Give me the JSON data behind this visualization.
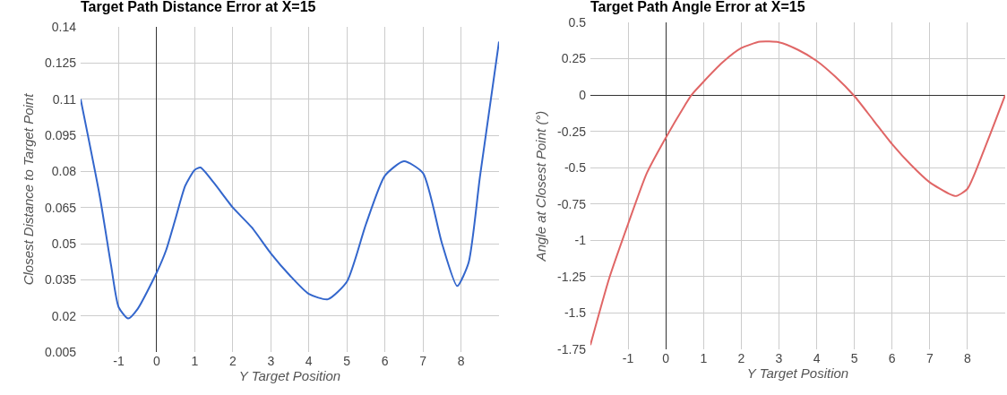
{
  "chart_data": [
    {
      "type": "line",
      "title": "Target Path Distance Error at X=15",
      "xlabel": "Y Target Position",
      "ylabel": "Closest Distance to Target Point",
      "grid": true,
      "x": [
        -2,
        -1.5,
        -1.2,
        -1,
        -0.75,
        -0.5,
        0,
        0.25,
        0.5,
        0.75,
        1,
        1.15,
        1.5,
        2,
        2.5,
        3,
        3.5,
        4,
        4.5,
        5,
        5.5,
        6,
        6.5,
        7,
        7.5,
        7.9,
        8.2,
        8.5,
        9
      ],
      "series": [
        {
          "color": "#3366cc",
          "values": [
            0.11,
            0.07,
            0.041,
            0.0236,
            0.0189,
            0.0229,
            0.038,
            0.0474,
            0.0607,
            0.074,
            0.0806,
            0.0816,
            0.0753,
            0.065,
            0.0567,
            0.046,
            0.0368,
            0.0291,
            0.0269,
            0.0342,
            0.058,
            0.0782,
            0.0842,
            0.0793,
            0.0501,
            0.0324,
            0.0421,
            0.0779,
            0.1339
          ]
        }
      ],
      "xlim": [
        -2,
        9
      ],
      "xticks": [
        -1,
        0,
        1,
        2,
        3,
        4,
        5,
        6,
        7,
        8
      ],
      "ylim": [
        0.005,
        0.14
      ],
      "yticks": [
        0.005,
        0.02,
        0.035,
        0.05,
        0.065,
        0.08,
        0.095,
        0.11,
        0.125,
        0.14
      ]
    },
    {
      "type": "line",
      "title": "Target Path Angle Error at X=15",
      "xlabel": "Y Target Position",
      "ylabel": "Angle at Closest Point (°)",
      "grid": true,
      "x": [
        -2,
        -1.5,
        -1,
        -0.5,
        0,
        0.5,
        0.68,
        1,
        1.5,
        2,
        2.5,
        3,
        3.5,
        4,
        4.5,
        5,
        5.5,
        6,
        6.5,
        7,
        7.5,
        7.7,
        8,
        8.5,
        9
      ],
      "series": [
        {
          "color": "#e06666",
          "values": [
            -1.72,
            -1.26,
            -0.887,
            -0.535,
            -0.293,
            -0.073,
            0,
            0.092,
            0.224,
            0.323,
            0.367,
            0.363,
            0.312,
            0.235,
            0.125,
            -0.007,
            -0.172,
            -0.337,
            -0.48,
            -0.601,
            -0.678,
            -0.695,
            -0.645,
            -0.337,
            0
          ]
        }
      ],
      "xlim": [
        -2,
        9
      ],
      "xticks": [
        -1,
        0,
        1,
        2,
        3,
        4,
        5,
        6,
        7,
        8
      ],
      "ylim": [
        -1.75,
        0.5
      ],
      "yticks": [
        -1.75,
        -1.5,
        -1.25,
        -1,
        -0.75,
        -0.5,
        -0.25,
        0,
        0.25,
        0.5
      ]
    }
  ]
}
